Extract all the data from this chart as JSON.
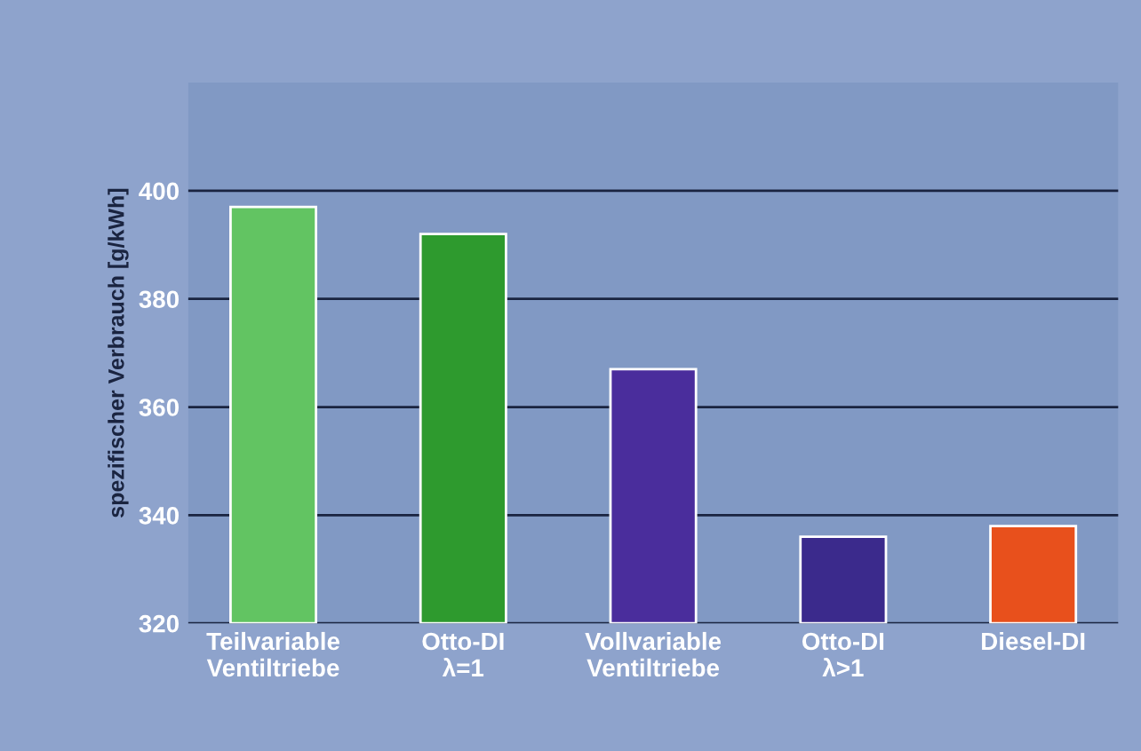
{
  "chart_data": {
    "type": "bar",
    "ylabel": "spezifischer Verbrauch [g/kWh]",
    "categories": [
      "Teilvariable\nVentiltriebe",
      "Otto-DI\nλ=1",
      "Vollvariable\nVentiltriebe",
      "Otto-DI\nλ>1",
      "Diesel-DI"
    ],
    "values": [
      397,
      392,
      367,
      336,
      338
    ],
    "colors": [
      "#62c462",
      "#2e9a2e",
      "#4a2d9c",
      "#3b2a8c",
      "#e8501c"
    ],
    "ylim": [
      320,
      420
    ],
    "yticks": [
      320,
      340,
      360,
      380,
      400
    ],
    "grid": "y"
  }
}
